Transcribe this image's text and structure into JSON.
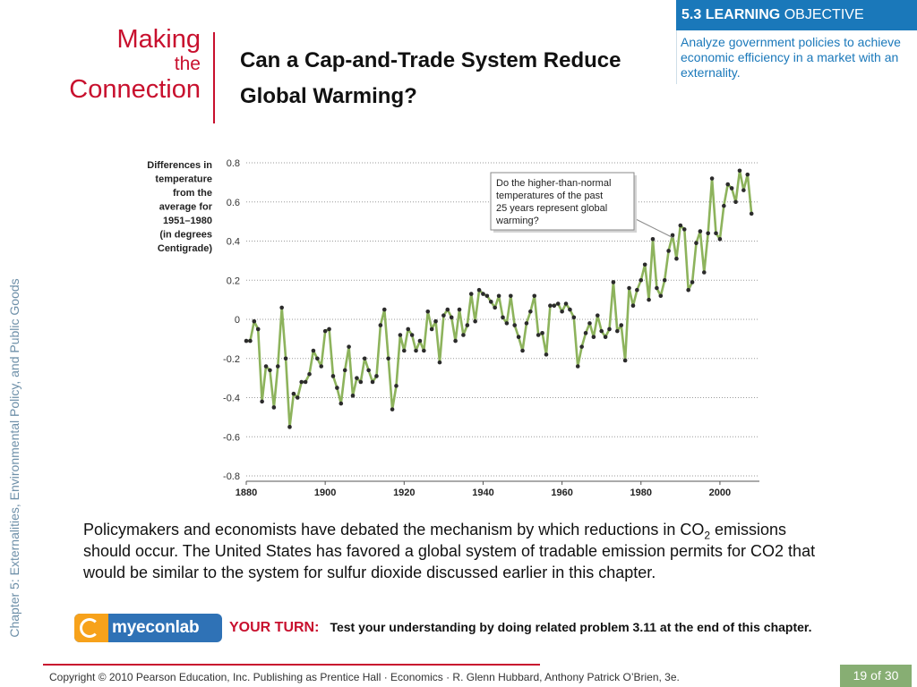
{
  "side_label": "Chapter 5: Externalities, Environmental Policy, and Public Goods",
  "feature": {
    "line1": "Making",
    "line2": "the",
    "line3": "Connection"
  },
  "headline": "Can a Cap-and-Trade System Reduce Global Warming?",
  "learning_objective": {
    "label_bold": "5.3 LEARNING",
    "label_rest": "OBJECTIVE",
    "text": "Analyze government policies to achieve economic efficiency in a market with an externality."
  },
  "body_text": {
    "before_sub": "Policymakers and economists have debated the mechanism by which reductions in CO",
    "sub": "2",
    "after_sub": " emissions should occur. The United States has favored a global system of tradable emission permits for CO2 that would be similar to the system for sulfur dioxide discussed earlier in this chapter."
  },
  "myeconlab": {
    "logo_text": "myeconlab"
  },
  "your_turn": {
    "label": "YOUR TURN:",
    "text": "Test your understanding by doing related problem 3.11 at the end of this chapter."
  },
  "footer": {
    "copyright": "Copyright © 2010 Pearson Education, Inc. Publishing as Prentice Hall · Economics · R. Glenn Hubbard, Anthony Patrick O’Brien, 3e.",
    "page_current": "19",
    "page_of": "of",
    "page_total": "30"
  },
  "colors": {
    "brand_red": "#c8102e",
    "lo_blue": "#1a78ba",
    "line_green": "#8db35c",
    "point": "#2b2b2b",
    "page_badge": "#87ae73"
  },
  "chart_data": {
    "type": "line",
    "ylabel_lines": [
      "Differences in",
      "temperature",
      "from the",
      "average for",
      "1951–1980",
      "(in degrees",
      "Centigrade)"
    ],
    "xlim": [
      1880,
      2010
    ],
    "ylim": [
      -0.8,
      0.8
    ],
    "x_ticks": [
      "1880",
      "1900",
      "1920",
      "1940",
      "1960",
      "1980",
      "2000"
    ],
    "x_tick_values": [
      1880,
      1900,
      1920,
      1940,
      1960,
      1980,
      2000
    ],
    "y_ticks": [
      "0.8",
      "0.6",
      "0.4",
      "0.2",
      "0",
      "-0.2",
      "-0.4",
      "-0.6",
      "-0.8"
    ],
    "y_tick_values": [
      0.8,
      0.6,
      0.4,
      0.2,
      0,
      -0.2,
      -0.4,
      -0.6,
      -0.8
    ],
    "grid": "horizontal-dotted",
    "annotation": "Do the higher-than-normal temperatures of the past 25 years represent global warming?",
    "series": [
      {
        "x": [
          1880,
          1881,
          1882,
          1883,
          1884,
          1885,
          1886,
          1887,
          1888,
          1889,
          1890,
          1891,
          1892,
          1893,
          1894,
          1895,
          1896,
          1897,
          1898,
          1899,
          1900,
          1901,
          1902,
          1903,
          1904,
          1905,
          1906,
          1907,
          1908,
          1909,
          1910,
          1911,
          1912,
          1913,
          1914,
          1915,
          1916,
          1917,
          1918,
          1919,
          1920,
          1921,
          1922,
          1923,
          1924,
          1925,
          1926,
          1927,
          1928,
          1929,
          1930,
          1931,
          1932,
          1933,
          1934,
          1935,
          1936,
          1937,
          1938,
          1939,
          1940,
          1941,
          1942,
          1943,
          1944,
          1945,
          1946,
          1947,
          1948,
          1949,
          1950,
          1951,
          1952,
          1953,
          1954,
          1955,
          1956,
          1957,
          1958,
          1959,
          1960,
          1961,
          1962,
          1963,
          1964,
          1965,
          1966,
          1967,
          1968,
          1969,
          1970,
          1971,
          1972,
          1973,
          1974,
          1975,
          1976,
          1977,
          1978,
          1979,
          1980,
          1981,
          1982,
          1983,
          1984,
          1985,
          1986,
          1987,
          1988,
          1989,
          1990,
          1991,
          1992,
          1993,
          1994,
          1995,
          1996,
          1997,
          1998,
          1999,
          2000,
          2001,
          2002,
          2003,
          2004,
          2005,
          2006,
          2007,
          2008
        ],
        "y": [
          -0.11,
          -0.11,
          -0.01,
          -0.05,
          -0.42,
          -0.24,
          -0.26,
          -0.45,
          -0.24,
          0.06,
          -0.2,
          -0.55,
          -0.38,
          -0.4,
          -0.32,
          -0.32,
          -0.28,
          -0.16,
          -0.2,
          -0.24,
          -0.06,
          -0.05,
          -0.29,
          -0.35,
          -0.43,
          -0.26,
          -0.14,
          -0.39,
          -0.3,
          -0.32,
          -0.2,
          -0.26,
          -0.32,
          -0.29,
          -0.03,
          0.05,
          -0.2,
          -0.46,
          -0.34,
          -0.08,
          -0.16,
          -0.05,
          -0.08,
          -0.16,
          -0.11,
          -0.16,
          0.04,
          -0.05,
          -0.01,
          -0.22,
          0.02,
          0.05,
          0.01,
          -0.11,
          0.05,
          -0.08,
          -0.03,
          0.13,
          -0.01,
          0.15,
          0.13,
          0.12,
          0.09,
          0.06,
          0.12,
          0.01,
          -0.02,
          0.12,
          -0.03,
          -0.09,
          -0.16,
          -0.02,
          0.04,
          0.12,
          -0.08,
          -0.07,
          -0.18,
          0.07,
          0.07,
          0.08,
          0.04,
          0.08,
          0.05,
          0.01,
          -0.24,
          -0.14,
          -0.07,
          -0.02,
          -0.09,
          0.02,
          -0.06,
          -0.09,
          -0.05,
          0.19,
          -0.06,
          -0.03,
          -0.21,
          0.16,
          0.07,
          0.15,
          0.2,
          0.28,
          0.1,
          0.41,
          0.16,
          0.12,
          0.2,
          0.35,
          0.43,
          0.31,
          0.48,
          0.46,
          0.15,
          0.19,
          0.39,
          0.45,
          0.24,
          0.44,
          0.72,
          0.44,
          0.41,
          0.58,
          0.69,
          0.67,
          0.6,
          0.76,
          0.66,
          0.74,
          0.54
        ]
      }
    ]
  }
}
